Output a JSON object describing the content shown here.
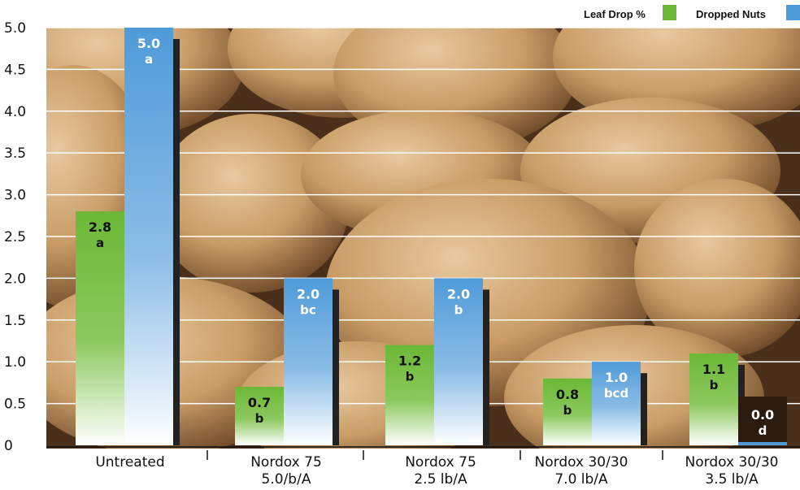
{
  "chart_data": {
    "type": "bar",
    "categories": [
      [
        "Untreated"
      ],
      [
        "Nordox 75",
        "5.0/b/A"
      ],
      [
        "Nordox 75",
        "2.5 lb/A"
      ],
      [
        "Nordox 30/30",
        "7.0 lb/A"
      ],
      [
        "Nordox 30/30",
        "3.5 lb/A"
      ]
    ],
    "series": [
      {
        "name": "Leaf Drop %",
        "color": "#6bb836",
        "values": [
          2.8,
          0.7,
          1.2,
          0.8,
          1.1
        ],
        "value_labels": [
          "2.8",
          "0.7",
          "1.2",
          "0.8",
          "1.1"
        ],
        "letters": [
          "a",
          "b",
          "b",
          "b",
          "b"
        ]
      },
      {
        "name": "Dropped Nuts",
        "color": "#4f9bd9",
        "values": [
          5.0,
          2.0,
          2.0,
          1.0,
          0.0
        ],
        "value_labels": [
          "5.0",
          "2.0",
          "2.0",
          "1.0",
          "0.0"
        ],
        "letters": [
          "a",
          "bc",
          "b",
          "bcd",
          "d"
        ]
      }
    ],
    "ylim": [
      0,
      5.0
    ],
    "yticks": [
      "0",
      "0.5",
      "1.0",
      "1.5",
      "2.0",
      "2.5",
      "3.0",
      "3.5",
      "4.0",
      "4.5",
      "5.0"
    ],
    "grid": true,
    "legend_position": "top-right",
    "background": "walnut photograph"
  }
}
